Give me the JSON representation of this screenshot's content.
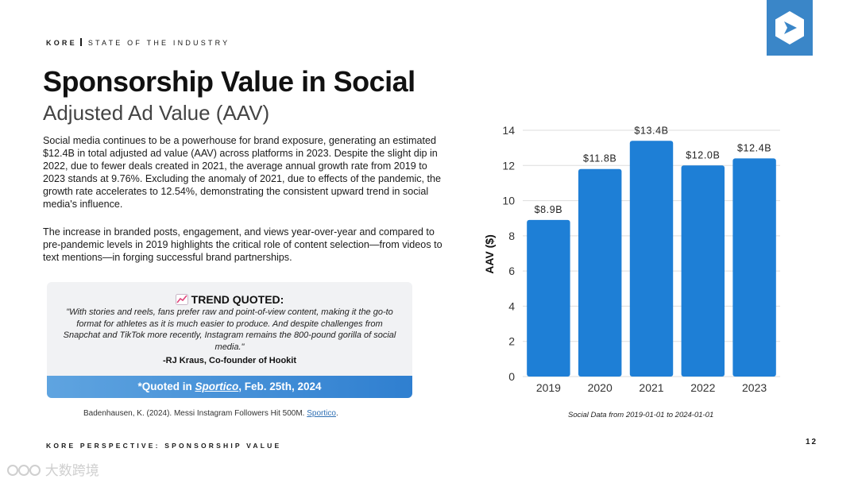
{
  "header": {
    "brand": "KORE",
    "section": "STATE OF THE INDUSTRY"
  },
  "title": "Sponsorship Value in Social",
  "subtitle": "Adjusted Ad Value (AAV)",
  "paragraphs": [
    "Social media continues to be a powerhouse for brand exposure, generating an estimated $12.4B in total adjusted ad value (AAV) across platforms in 2023. Despite the slight dip in 2022, due to fewer deals created in 2021, the average annual growth rate from 2019 to 2023 stands at 9.76%. Excluding the anomaly of 2021, due to effects of the pandemic, the growth rate accelerates to 12.54%, demonstrating the consistent upward trend in social media's influence.",
    "The increase in branded posts, engagement, and views year-over-year and compared to pre-pandemic levels in 2019 highlights the critical role of content selection—from videos to text mentions—in forging successful brand partnerships."
  ],
  "quote": {
    "heading": "TREND QUOTED:",
    "heading_icon": "chart-trend-icon",
    "text": "\"With stories and reels, fans prefer raw and point-of-view content, making it the go-to format for athletes as it is much easier to produce. And despite challenges from Snapchat and TikTok more recently, Instagram remains the 800-pound gorilla of social media.\"",
    "author": "-RJ Kraus, Co-founder of Hookit",
    "source_prefix": "*Quoted in ",
    "source_link": "Sportico",
    "source_suffix": ", Feb. 25th, 2024"
  },
  "citation": {
    "text": "Badenhausen, K. (2024). Messi Instagram Followers Hit 500M. ",
    "link": "Sportico",
    "end": "."
  },
  "footer": "KORE PERSPECTIVE: SPONSORSHIP VALUE",
  "page_number": "12",
  "watermark": "大数跨境",
  "colors": {
    "bar": "#1e7fd6",
    "logo_bg": "#3a86c8",
    "quote_bar_start": "#5fa4e0",
    "quote_bar_end": "#2f7fd0"
  },
  "chart_data": {
    "type": "bar",
    "categories": [
      "2019",
      "2020",
      "2021",
      "2022",
      "2023"
    ],
    "values": [
      8.9,
      11.8,
      13.4,
      12.0,
      12.4
    ],
    "data_labels": [
      "$8.9B",
      "$11.8B",
      "$13.4B",
      "$12.0B",
      "$12.4B"
    ],
    "yticks": [
      0,
      2,
      4,
      6,
      8,
      10,
      12,
      14
    ],
    "ylim": [
      0,
      14
    ],
    "ylabel": "AAV ($)",
    "xlabel": "",
    "grid": true,
    "note": "Social Data from 2019-01-01 to 2024-01-01"
  }
}
